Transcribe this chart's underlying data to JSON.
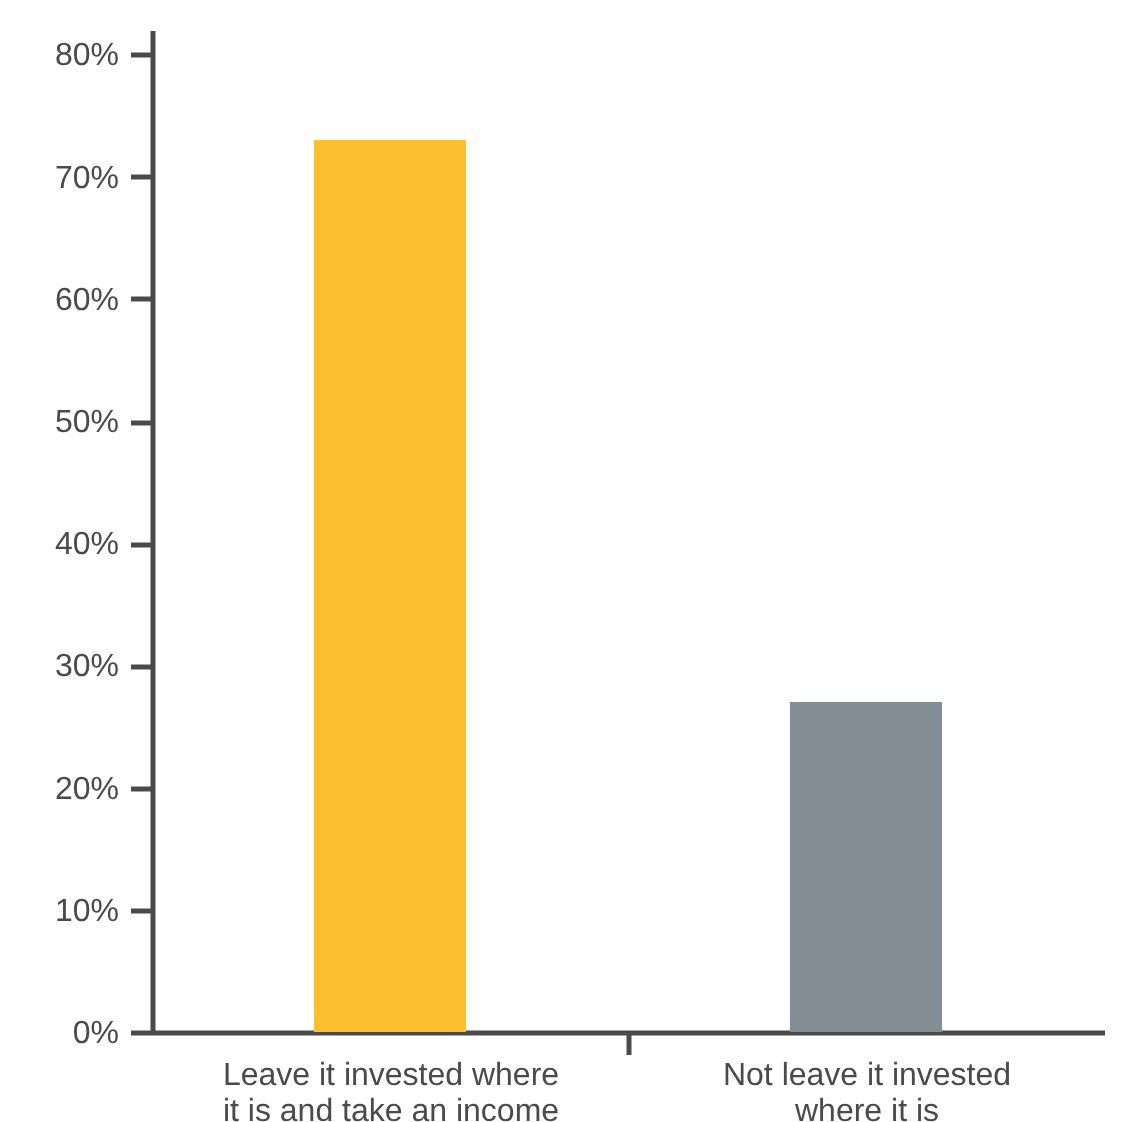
{
  "chart_data": {
    "type": "bar",
    "categories": [
      "Leave it invested where it is and take an income",
      "Not leave it invested where it is"
    ],
    "values": [
      73,
      27
    ],
    "colors": [
      "#fcc02e",
      "#838e95"
    ],
    "ylim": [
      0,
      82
    ],
    "yticks": [
      {
        "value": 0,
        "label": "0%"
      },
      {
        "value": 10,
        "label": "10%"
      },
      {
        "value": 20,
        "label": "20%"
      },
      {
        "value": 30,
        "label": "30%"
      },
      {
        "value": 40,
        "label": "40%"
      },
      {
        "value": 50,
        "label": "50%"
      },
      {
        "value": 60,
        "label": "60%"
      },
      {
        "value": 70,
        "label": "70%"
      },
      {
        "value": 80,
        "label": "80%"
      }
    ]
  }
}
